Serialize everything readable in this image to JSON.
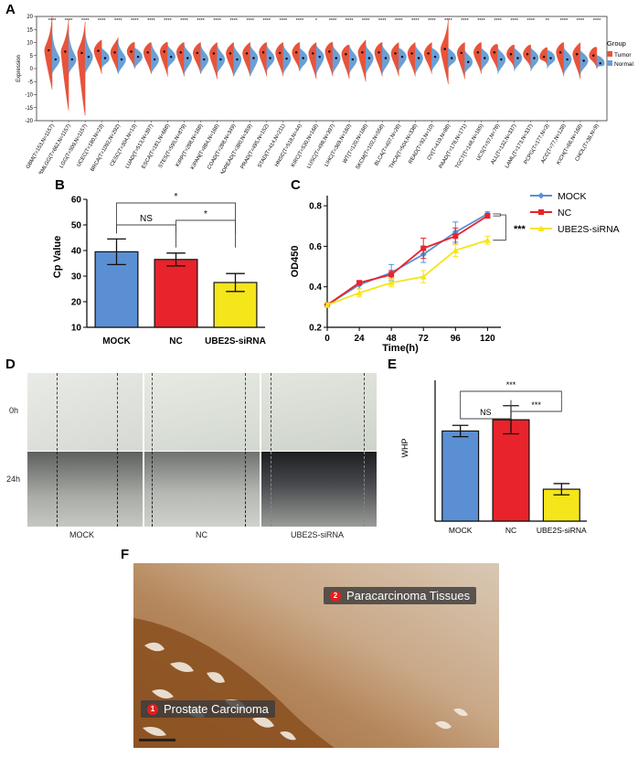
{
  "panels": {
    "a": "A",
    "b": "B",
    "c": "C",
    "d": "D",
    "e": "E",
    "f": "F"
  },
  "colors": {
    "tumor": "#e8533a",
    "normal": "#6a9fd6",
    "mock": "#5b8fd3",
    "nc": "#e8232b",
    "sirna": "#f5e51b"
  },
  "chart_data": [
    {
      "panel": "A",
      "type": "violin",
      "ylabel": "Expression",
      "ylim": [
        -20,
        20
      ],
      "yticks": [
        -20,
        -15,
        -10,
        -5,
        0,
        5,
        10,
        15,
        20
      ],
      "legend": {
        "title": "Group",
        "items": [
          "Tumor",
          "Normal"
        ]
      },
      "categories": [
        "GBM(T=153,N=1157)",
        "GBMLGG(T=662,N=1157)",
        "LGG(T=509,N=1157)",
        "UCEC(T=180,N=23)",
        "BRCA(T=1092,N=292)",
        "CESC(T=304,N=13)",
        "LUAD(T=513,N=397)",
        "ESCA(T=181,N=668)",
        "STES(T=595,N=879)",
        "KIRP(T=288,N=168)",
        "KIPAN(T=884,N=168)",
        "COAD(T=288,N=349)",
        "COADREAD(T=380,N=359)",
        "PRAD(T=495,N=152)",
        "STAD(T=414,N=211)",
        "HNSC(T=518,N=44)",
        "KIRC(T=530,N=168)",
        "LUSC(T=498,N=397)",
        "LIHC(T=369,N=160)",
        "WT(T=120,N=168)",
        "SKCM(T=102,N=558)",
        "BLCA(T=407,N=28)",
        "THCA(T=504,N=338)",
        "READ(T=92,N=10)",
        "OV(T=419,N=88)",
        "PAAD(T=178,N=171)",
        "TGCT(T=148,N=165)",
        "UCS(T=57,N=78)",
        "ALL(T=132,N=337)",
        "LAML(T=173,N=337)",
        "PCPG(T=177,N=3)",
        "ACC(T=77,N=128)",
        "KICH(T=66,N=168)",
        "CHOL(T=36,N=9)"
      ],
      "significance": [
        "****",
        "****",
        "****",
        "****",
        "****",
        "****",
        "****",
        "****",
        "****",
        "****",
        "****",
        "****",
        "****",
        "****",
        "****",
        "****",
        "*",
        "****",
        "****",
        "****",
        "****",
        "****",
        "****",
        "****",
        "****",
        "****",
        "****",
        "****",
        "****",
        "****",
        "**",
        "****",
        "****",
        "****"
      ],
      "tumor_median": [
        7.0,
        6.5,
        6.0,
        6.8,
        6.2,
        6.5,
        6.2,
        6.5,
        6.2,
        6.0,
        5.8,
        5.8,
        5.8,
        6.2,
        6.0,
        6.2,
        5.8,
        6.5,
        5.5,
        6.2,
        6.2,
        5.8,
        5.8,
        5.8,
        7.5,
        6.0,
        6.2,
        6.2,
        5.5,
        5.5,
        4.5,
        6.2,
        5.5,
        5.0
      ],
      "normal_median": [
        3.5,
        3.5,
        4.5,
        4.0,
        3.5,
        4.5,
        3.5,
        4.5,
        4.0,
        3.5,
        3.5,
        3.5,
        4.0,
        4.0,
        3.8,
        4.0,
        4.5,
        4.0,
        3.5,
        4.0,
        4.0,
        4.5,
        4.0,
        4.5,
        4.0,
        2.5,
        4.0,
        3.5,
        4.0,
        4.0,
        4.0,
        3.5,
        3.0,
        2.0
      ],
      "tumor_range": [
        [
          -8,
          20
        ],
        [
          -16,
          19
        ],
        [
          -18,
          18
        ],
        [
          -2,
          11
        ],
        [
          -2,
          12
        ],
        [
          0,
          10
        ],
        [
          -2,
          10
        ],
        [
          -3,
          10
        ],
        [
          -3,
          10
        ],
        [
          -2,
          10
        ],
        [
          -4,
          10
        ],
        [
          -3,
          10
        ],
        [
          -3,
          10
        ],
        [
          -3,
          10
        ],
        [
          -3,
          10
        ],
        [
          -1,
          10
        ],
        [
          -4,
          10
        ],
        [
          -3,
          10
        ],
        [
          -4,
          9
        ],
        [
          -5,
          11
        ],
        [
          -3,
          10
        ],
        [
          -3,
          10
        ],
        [
          -3,
          10
        ],
        [
          -2,
          10
        ],
        [
          -6,
          19
        ],
        [
          -4,
          10
        ],
        [
          -2,
          10
        ],
        [
          -1,
          9
        ],
        [
          0,
          9
        ],
        [
          0,
          9
        ],
        [
          1,
          8
        ],
        [
          -3,
          10
        ],
        [
          -4,
          10
        ],
        [
          0,
          8
        ]
      ],
      "normal_range": [
        [
          -2,
          14
        ],
        [
          -2,
          14
        ],
        [
          -2,
          14
        ],
        [
          0,
          8
        ],
        [
          -2,
          10
        ],
        [
          0,
          8
        ],
        [
          -2,
          10
        ],
        [
          0,
          9
        ],
        [
          -2,
          9
        ],
        [
          -2,
          9
        ],
        [
          -2,
          9
        ],
        [
          -3,
          9
        ],
        [
          -3,
          9
        ],
        [
          -1,
          9
        ],
        [
          -2,
          9
        ],
        [
          -1,
          8
        ],
        [
          -2,
          9
        ],
        [
          -2,
          9
        ],
        [
          -2,
          9
        ],
        [
          -2,
          9
        ],
        [
          -2,
          9
        ],
        [
          -1,
          8
        ],
        [
          -2,
          9
        ],
        [
          -1,
          8
        ],
        [
          0,
          8
        ],
        [
          -2,
          7
        ],
        [
          -1,
          8
        ],
        [
          -2,
          8
        ],
        [
          -1,
          8
        ],
        [
          -1,
          8
        ],
        [
          0,
          7
        ],
        [
          -2,
          8
        ],
        [
          -2,
          7
        ],
        [
          0,
          5
        ]
      ]
    },
    {
      "panel": "B",
      "type": "bar",
      "ylabel": "Cp Value",
      "ylim": [
        10,
        60
      ],
      "yticks": [
        10,
        20,
        30,
        40,
        50,
        60
      ],
      "categories": [
        "MOCK",
        "NC",
        "UBE2S-siRNA"
      ],
      "values": [
        39.5,
        36.5,
        27.5
      ],
      "errors": [
        5.0,
        2.5,
        3.5
      ],
      "comparisons": [
        {
          "from": 0,
          "to": 1,
          "label": "NS"
        },
        {
          "from": 1,
          "to": 2,
          "label": "*"
        },
        {
          "from": 0,
          "to": 2,
          "label": "*"
        }
      ]
    },
    {
      "panel": "C",
      "type": "line",
      "ylabel": "OD450",
      "xlabel": "Time(h)",
      "xlim": [
        0,
        130
      ],
      "ylim": [
        0.2,
        0.85
      ],
      "x": [
        0,
        24,
        48,
        72,
        96,
        120
      ],
      "yticks": [
        0.2,
        0.4,
        0.6,
        0.8
      ],
      "series": [
        {
          "name": "MOCK",
          "values": [
            0.31,
            0.41,
            0.47,
            0.56,
            0.67,
            0.76
          ],
          "errors": [
            0.01,
            0.02,
            0.04,
            0.04,
            0.05,
            0.01
          ]
        },
        {
          "name": "NC",
          "values": [
            0.31,
            0.42,
            0.46,
            0.59,
            0.65,
            0.75
          ],
          "errors": [
            0.01,
            0.01,
            0.02,
            0.05,
            0.04,
            0.01
          ]
        },
        {
          "name": "UBE2S-siRNA",
          "values": [
            0.31,
            0.37,
            0.42,
            0.45,
            0.58,
            0.63
          ],
          "errors": [
            0.01,
            0.02,
            0.02,
            0.03,
            0.03,
            0.02
          ]
        }
      ],
      "significance": "***"
    },
    {
      "panel": "E",
      "type": "bar",
      "ylabel": "WHP",
      "ylim": [
        0,
        15
      ],
      "categories": [
        "MOCK",
        "NC",
        "UBE2S-siRNA"
      ],
      "values": [
        9.6,
        10.8,
        3.4
      ],
      "errors": [
        0.6,
        1.5,
        0.6
      ],
      "comparisons": [
        {
          "from": 0,
          "to": 1,
          "label": "NS"
        },
        {
          "from": 1,
          "to": 2,
          "label": "***"
        },
        {
          "from": 0,
          "to": 2,
          "label": "***"
        }
      ]
    }
  ],
  "scratch_assay": {
    "rows": [
      "0h",
      "24h"
    ],
    "columns": [
      "MOCK",
      "NC",
      "UBE2S-siRNA"
    ]
  },
  "histology": {
    "tag1_num": "1",
    "tag1": "Prostate Carcinoma",
    "tag2_num": "2",
    "tag2": "Paracarcinoma Tissues"
  }
}
